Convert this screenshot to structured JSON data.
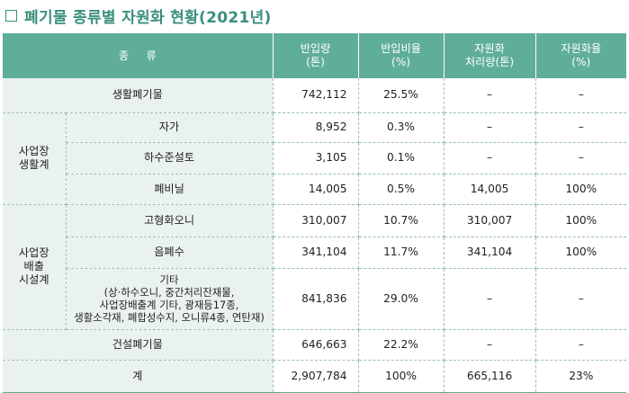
{
  "title": "폐기물 종류별 자원화 현황(2021년)",
  "header": {
    "type": "종     류",
    "incoming": [
      "반입량",
      "(톤)"
    ],
    "incoming_ratio": [
      "반입비율",
      "(%)"
    ],
    "recycled": [
      "자원화",
      "처리량(톤)"
    ],
    "recycle_rate": [
      "자원화율",
      "(%)"
    ]
  },
  "rows": {
    "household": {
      "name": "생활폐기물",
      "incoming": "742,112",
      "ratio": "25.5%",
      "recycled": "–",
      "rate": "–"
    },
    "biz_group": [
      "사업장",
      "생활계"
    ],
    "jaga": {
      "name": "자가",
      "incoming": "8,952",
      "ratio": "0.3%",
      "recycled": "–",
      "rate": "–"
    },
    "sewage": {
      "name": "하수준설토",
      "incoming": "3,105",
      "ratio": "0.1%",
      "recycled": "–",
      "rate": "–"
    },
    "vinyl": {
      "name": "폐비닐",
      "incoming": "14,005",
      "ratio": "0.5%",
      "recycled": "14,005",
      "rate": "100%"
    },
    "facility_group": [
      "사업장",
      "배출",
      "시설계"
    ],
    "sludge": {
      "name": "고형화오니",
      "incoming": "310,007",
      "ratio": "10.7%",
      "recycled": "310,007",
      "rate": "100%"
    },
    "food": {
      "name": "음폐수",
      "incoming": "341,104",
      "ratio": "11.7%",
      "recycled": "341,104",
      "rate": "100%"
    },
    "etc": {
      "name_lines": [
        "기타",
        "(상·하수오니, 중간처리잔재물,",
        "사업장배출계 기타, 광재등17종,",
        "생활소각재, 폐합성수지, 오니류4종, 연탄재)"
      ],
      "incoming": "841,836",
      "ratio": "29.0%",
      "recycled": "–",
      "rate": "–"
    },
    "construction": {
      "name": "건설폐기물",
      "incoming": "646,663",
      "ratio": "22.2%",
      "recycled": "–",
      "rate": "–"
    },
    "total": {
      "name": "계",
      "incoming": "2,907,784",
      "ratio": "100%",
      "recycled": "665,116",
      "rate": "23%"
    }
  },
  "colors": {
    "accent": "#3a8f7c",
    "header_bg": "#5fae98",
    "shade_bg": "#e9f2ef"
  }
}
